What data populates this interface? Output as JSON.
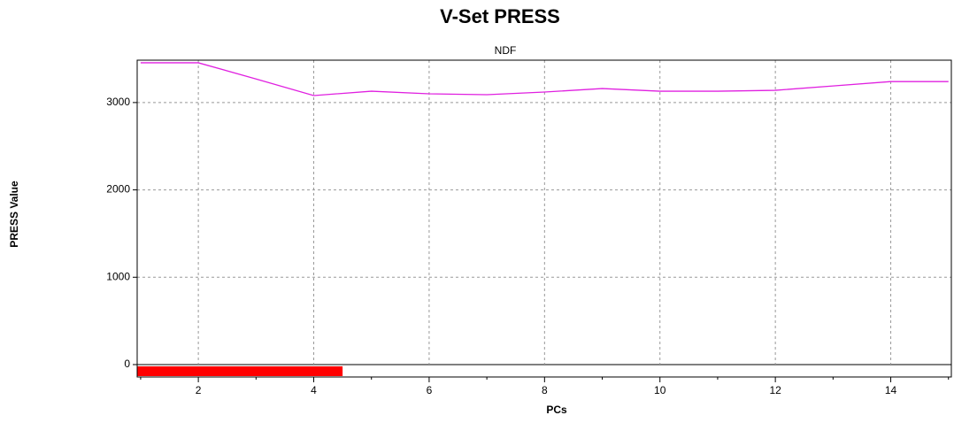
{
  "chart_data": {
    "type": "line",
    "title": "V-Set PRESS",
    "subtitle": "NDF",
    "x_label": "PCs",
    "y_label": "PRESS Value",
    "x": [
      1,
      2,
      3,
      4,
      5,
      6,
      7,
      8,
      9,
      10,
      11,
      12,
      13,
      14,
      15
    ],
    "series": [
      {
        "color": "#e020e0",
        "values": [
          3455,
          3455,
          3270,
          3080,
          3130,
          3100,
          3090,
          3120,
          3160,
          3130,
          3130,
          3140,
          3190,
          3240,
          3240
        ]
      }
    ],
    "xlim": [
      0.94,
      15.05
    ],
    "ylim": [
      -142,
      3485
    ],
    "xticks": [
      2,
      4,
      6,
      8,
      10,
      12,
      14
    ],
    "xminor_ticks": [
      1,
      3,
      5,
      7,
      9,
      11,
      13,
      15
    ],
    "yticks": [
      0,
      1000,
      2000,
      3000
    ],
    "grid": true,
    "selection_end": 4.5,
    "selection_color": "#ff0000"
  }
}
